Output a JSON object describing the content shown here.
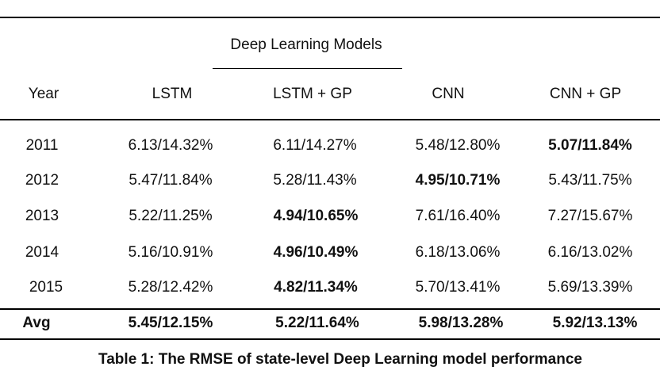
{
  "table": {
    "group_header": "Deep Learning Models",
    "columns": [
      "Year",
      "LSTM",
      "LSTM + GP",
      "CNN",
      "CNN + GP"
    ],
    "rows": [
      {
        "year": "2011",
        "cells": [
          "6.13/14.32%",
          "6.11/14.27%",
          "5.48/12.80%",
          "5.07/11.84%"
        ],
        "bold": [
          false,
          false,
          false,
          true
        ]
      },
      {
        "year": "2012",
        "cells": [
          "5.47/11.84%",
          "5.28/11.43%",
          "4.95/10.71%",
          "5.43/11.75%"
        ],
        "bold": [
          false,
          false,
          true,
          false
        ]
      },
      {
        "year": "2013",
        "cells": [
          "5.22/11.25%",
          "4.94/10.65%",
          "7.61/16.40%",
          "7.27/15.67%"
        ],
        "bold": [
          false,
          true,
          false,
          false
        ]
      },
      {
        "year": "2014",
        "cells": [
          "5.16/10.91%",
          "4.96/10.49%",
          "6.18/13.06%",
          "6.16/13.02%"
        ],
        "bold": [
          false,
          true,
          false,
          false
        ]
      },
      {
        "year": "2015",
        "cells": [
          "5.28/12.42%",
          "4.82/11.34%",
          "5.70/13.41%",
          "5.69/13.39%"
        ],
        "bold": [
          false,
          true,
          false,
          false
        ]
      }
    ],
    "avg": {
      "label": "Avg",
      "cells": [
        "5.45/12.15%",
        "5.22/11.64%",
        "5.98/13.28%",
        "5.92/13.13%"
      ]
    },
    "caption": "Table 1: The RMSE of state-level Deep Learning model performance"
  }
}
